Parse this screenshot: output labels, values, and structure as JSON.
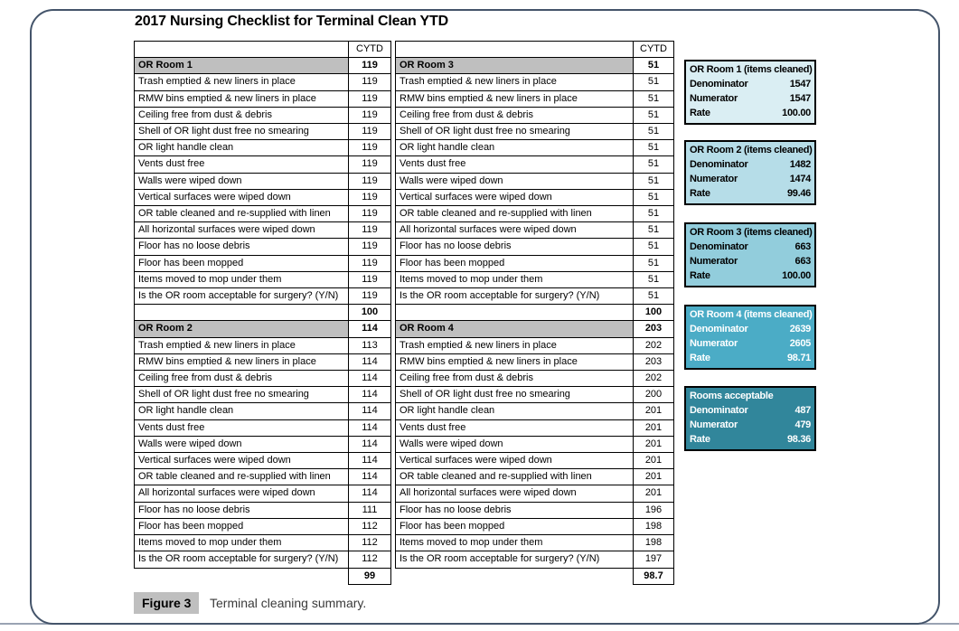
{
  "title": "2017 Nursing Checklist for Terminal Clean YTD",
  "cytd_header": "CYTD",
  "checklist_items": [
    "Trash emptied & new liners in place",
    "RMW bins emptied & new liners in place",
    "Ceiling free from dust & debris",
    "Shell of OR light dust free no smearing",
    "OR light handle clean",
    "Vents dust free",
    "Walls were wiped down",
    "Vertical surfaces were wiped down",
    "OR table cleaned and re-supplied with linen",
    "All horizontal surfaces were wiped down",
    "Floor has no loose debris",
    "Floor has been mopped",
    "Items moved to mop under them",
    "Is the OR room acceptable for surgery? (Y/N)"
  ],
  "tables": [
    {
      "sections": [
        {
          "name": "OR Room 1",
          "header_value": "119",
          "values": [
            "119",
            "119",
            "119",
            "119",
            "119",
            "119",
            "119",
            "119",
            "119",
            "119",
            "119",
            "119",
            "119",
            "119"
          ],
          "total": "100"
        },
        {
          "name": "OR Room 2",
          "header_value": "114",
          "values": [
            "113",
            "114",
            "114",
            "114",
            "114",
            "114",
            "114",
            "114",
            "114",
            "114",
            "111",
            "112",
            "112",
            "112"
          ],
          "total": "99"
        }
      ]
    },
    {
      "sections": [
        {
          "name": "OR Room 3",
          "header_value": "51",
          "values": [
            "51",
            "51",
            "51",
            "51",
            "51",
            "51",
            "51",
            "51",
            "51",
            "51",
            "51",
            "51",
            "51",
            "51"
          ],
          "total": "100"
        },
        {
          "name": "OR Room 4",
          "header_value": "203",
          "values": [
            "202",
            "203",
            "202",
            "200",
            "201",
            "201",
            "201",
            "201",
            "201",
            "201",
            "196",
            "198",
            "198",
            "197"
          ],
          "total": "98.7"
        }
      ]
    }
  ],
  "summary_boxes": [
    {
      "title": "OR Room 1 (items cleaned)",
      "rows": [
        {
          "label": "Denominator",
          "value": "1547"
        },
        {
          "label": "Numerator",
          "value": "1547"
        },
        {
          "label": "Rate",
          "value": "100.00"
        }
      ],
      "bg": "#DAEEF3",
      "text_color": "#000000"
    },
    {
      "title": "OR Room 2 (items cleaned)",
      "rows": [
        {
          "label": "Denominator",
          "value": "1482"
        },
        {
          "label": "Numerator",
          "value": "1474"
        },
        {
          "label": "Rate",
          "value": "99.46"
        }
      ],
      "bg": "#B6DDE8",
      "text_color": "#000000"
    },
    {
      "title": "OR Room 3 (items cleaned)",
      "rows": [
        {
          "label": "Denominator",
          "value": "663"
        },
        {
          "label": "Numerator",
          "value": "663"
        },
        {
          "label": "Rate",
          "value": "100.00"
        }
      ],
      "bg": "#92CDDC",
      "text_color": "#000000"
    },
    {
      "title": "OR Room 4 (items cleaned)",
      "rows": [
        {
          "label": "Denominator",
          "value": "2639"
        },
        {
          "label": "Numerator",
          "value": "2605"
        },
        {
          "label": "Rate",
          "value": "98.71"
        }
      ],
      "bg": "#4BACC6",
      "text_color": "#FFFFFF"
    },
    {
      "title": "Rooms acceptable",
      "rows": [
        {
          "label": "Denominator",
          "value": "487"
        },
        {
          "label": "Numerator",
          "value": "479"
        },
        {
          "label": "Rate",
          "value": "98.36"
        }
      ],
      "bg": "#31869B",
      "text_color": "#FFFFFF"
    }
  ],
  "caption": {
    "label": "Figure 3",
    "text": "Terminal cleaning summary."
  },
  "colors": {
    "section_header_bg": "#BFBFBF",
    "frame_border": "#44546A",
    "bottom_rule": "#99A3B3",
    "caption_chip_bg": "#BFBFBF"
  }
}
